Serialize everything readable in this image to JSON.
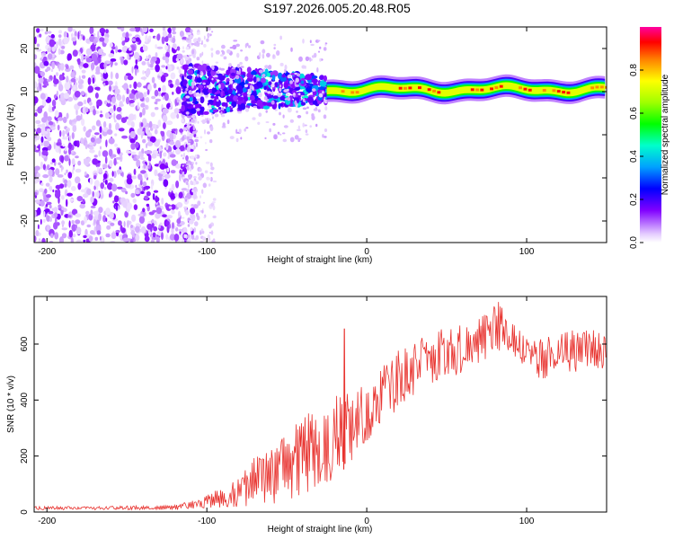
{
  "title": "S197.2026.005.20.48.R05",
  "chart_data": [
    {
      "type": "heatmap",
      "name": "spectrogram",
      "xlabel": "Height of straight line (km)",
      "ylabel": "Frequency (Hz)",
      "xlim": [
        -208,
        150
      ],
      "ylim": [
        -25,
        25
      ],
      "xticks": [
        -200,
        -100,
        0,
        100
      ],
      "yticks": [
        -20,
        -10,
        0,
        10,
        20
      ],
      "xtick_labels": [
        "-200",
        "-100",
        "0",
        "100"
      ],
      "ytick_labels": [
        "-20",
        "-10",
        "0",
        "10",
        "20"
      ],
      "dominant_frequency_hz": 10.5,
      "colorbar": {
        "label": "Normalized spectral amplitude",
        "range": [
          0,
          1
        ],
        "ticks": [
          0.0,
          0.2,
          0.4,
          0.6,
          0.8
        ],
        "tick_labels": [
          "0.0",
          "0.2",
          "0.4",
          "0.6",
          "0.8"
        ]
      },
      "regions": [
        {
          "x_range": [
            -208,
            -115
          ],
          "pattern": "broadband scattered noise",
          "amplitude": 0.1
        },
        {
          "x_range": [
            -115,
            -25
          ],
          "pattern": "clustered blobs around 10 Hz",
          "amplitude": 0.25
        },
        {
          "x_range": [
            -25,
            150
          ],
          "pattern": "narrow band at ~10.5 Hz",
          "amplitude": 0.85
        }
      ]
    },
    {
      "type": "line",
      "name": "snr",
      "xlabel": "Height of straight line (km)",
      "ylabel": "SNR (10 * v/v)",
      "xlim": [
        -208,
        150
      ],
      "ylim": [
        0,
        770
      ],
      "xticks": [
        -200,
        -100,
        0,
        100
      ],
      "yticks": [
        0,
        200,
        400,
        600
      ],
      "xtick_labels": [
        "-200",
        "-100",
        "0",
        "100"
      ],
      "ytick_labels": [
        "0",
        "200",
        "400",
        "600"
      ],
      "color": "#e8332f",
      "envelope": {
        "x": [
          -208,
          -180,
          -150,
          -120,
          -110,
          -100,
          -90,
          -80,
          -70,
          -60,
          -50,
          -40,
          -30,
          -20,
          -10,
          0,
          10,
          20,
          30,
          40,
          50,
          60,
          70,
          80,
          85,
          90,
          100,
          110,
          120,
          130,
          140,
          150
        ],
        "lower": [
          8,
          8,
          8,
          8,
          10,
          12,
          15,
          18,
          22,
          28,
          35,
          50,
          70,
          110,
          180,
          250,
          310,
          370,
          420,
          450,
          470,
          490,
          520,
          560,
          580,
          570,
          510,
          470,
          500,
          500,
          500,
          500
        ],
        "upper": [
          20,
          20,
          22,
          25,
          40,
          60,
          90,
          130,
          200,
          240,
          280,
          350,
          380,
          420,
          450,
          470,
          520,
          580,
          620,
          640,
          660,
          680,
          710,
          760,
          770,
          700,
          620,
          620,
          640,
          650,
          650,
          650
        ]
      },
      "spikes": [
        {
          "x": -14,
          "y": 655
        }
      ]
    }
  ]
}
